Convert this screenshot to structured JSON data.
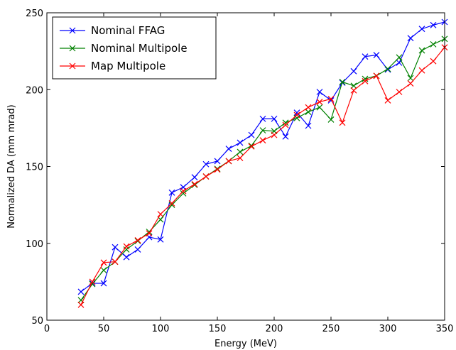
{
  "chart_data": {
    "type": "line",
    "title": "",
    "xlabel": "Energy (MeV)",
    "ylabel": "Normalized DA (mm mrad)",
    "xlim": [
      0,
      350
    ],
    "ylim": [
      50,
      250
    ],
    "xticks": [
      0,
      50,
      100,
      150,
      200,
      250,
      300,
      350
    ],
    "yticks": [
      50,
      100,
      150,
      200,
      250
    ],
    "grid": false,
    "legend_position": "top-left",
    "marker": "x",
    "series": [
      {
        "name": "Nominal FFAG",
        "color": "#0000ff",
        "x": [
          30,
          40,
          50,
          60,
          70,
          80,
          90,
          100,
          110,
          120,
          130,
          140,
          150,
          160,
          170,
          180,
          190,
          200,
          210,
          220,
          230,
          240,
          250,
          260,
          270,
          280,
          290,
          300,
          310,
          320,
          330,
          340,
          350
        ],
        "y": [
          68.5,
          74,
          74,
          97.5,
          91,
          96,
          104,
          102.5,
          133,
          136.5,
          143,
          151.5,
          153.5,
          161.5,
          165.5,
          170.5,
          181,
          181,
          169.5,
          185,
          176.5,
          198.5,
          193,
          204.5,
          212,
          221.5,
          222.5,
          213,
          217.5,
          233.5,
          239.5,
          242,
          244
        ]
      },
      {
        "name": "Nominal Multipole",
        "color": "#008000",
        "x": [
          30,
          40,
          50,
          60,
          70,
          80,
          90,
          100,
          110,
          120,
          130,
          140,
          150,
          160,
          170,
          180,
          190,
          200,
          210,
          220,
          230,
          240,
          250,
          260,
          270,
          280,
          290,
          300,
          310,
          320,
          330,
          340,
          350
        ],
        "y": [
          63,
          73.5,
          82.5,
          88,
          96,
          101.5,
          107.5,
          115.5,
          125,
          132.5,
          138,
          143.5,
          148.5,
          153.5,
          159.5,
          163.5,
          173.5,
          173,
          178.5,
          181.5,
          185.5,
          188.5,
          180.5,
          205,
          202.5,
          207,
          209,
          213.5,
          221,
          207.5,
          225.5,
          229.5,
          233
        ]
      },
      {
        "name": "Map Multipole",
        "color": "#ff0000",
        "x": [
          30,
          40,
          50,
          60,
          70,
          80,
          90,
          100,
          110,
          120,
          130,
          140,
          150,
          160,
          170,
          180,
          190,
          200,
          210,
          220,
          230,
          240,
          250,
          260,
          270,
          280,
          290,
          300,
          310,
          320,
          330,
          340,
          350
        ],
        "y": [
          60,
          75,
          87.5,
          88,
          98,
          102,
          106.5,
          119,
          126,
          134,
          138.5,
          143.5,
          148,
          153.5,
          155.5,
          163,
          167,
          170.5,
          177,
          183.5,
          188.5,
          192,
          194,
          178.5,
          199.5,
          205.5,
          209,
          193,
          198.5,
          204,
          212.5,
          218.5,
          227.5
        ]
      }
    ]
  }
}
